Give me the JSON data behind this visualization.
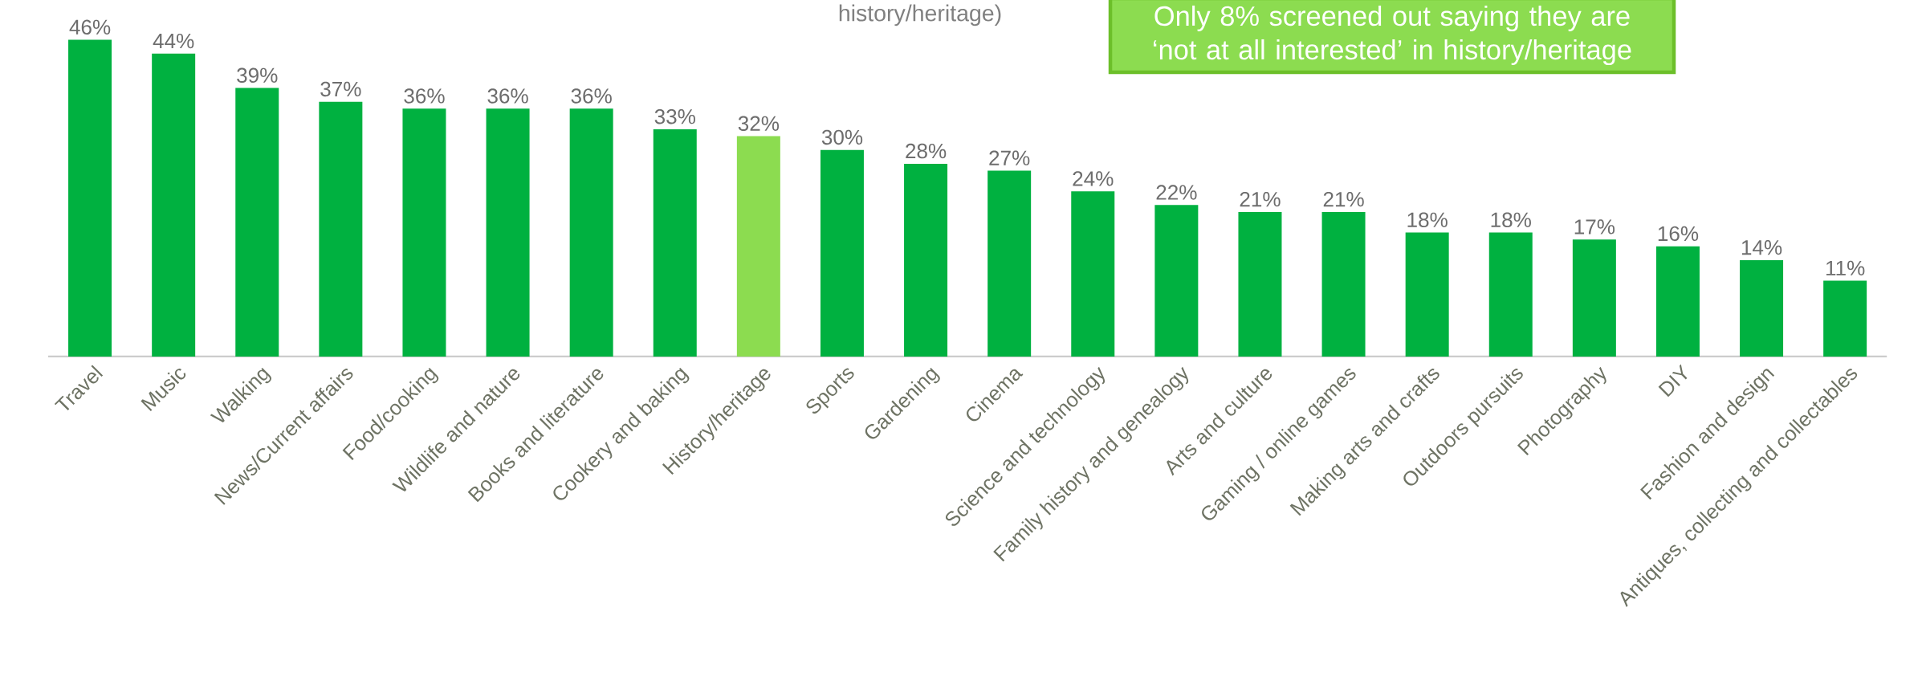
{
  "chart_data": {
    "type": "bar",
    "subtitle": "history/heritage)",
    "categories": [
      "Travel",
      "Music",
      "Walking",
      "News/Current affairs",
      "Food/cooking",
      "Wildlife and nature",
      "Books and literature",
      "Cookery and baking",
      "History/heritage",
      "Sports",
      "Gardening",
      "Cinema",
      "Science and technology",
      "Family history and genealogy",
      "Arts and culture",
      "Gaming / online games",
      "Making arts and crafts",
      "Outdoors pursuits",
      "Photography",
      "DIY",
      "Fashion and design",
      "Antiques, collecting and collectables"
    ],
    "values": [
      46,
      44,
      39,
      37,
      36,
      36,
      36,
      33,
      32,
      30,
      28,
      27,
      24,
      22,
      21,
      21,
      18,
      18,
      17,
      16,
      14,
      11
    ],
    "value_labels": [
      "46%",
      "44%",
      "39%",
      "37%",
      "36%",
      "36%",
      "36%",
      "33%",
      "32%",
      "30%",
      "28%",
      "27%",
      "24%",
      "22%",
      "21%",
      "21%",
      "18%",
      "18%",
      "17%",
      "16%",
      "14%",
      "11%"
    ],
    "colors": [
      "#00b140",
      "#00b140",
      "#00b140",
      "#00b140",
      "#00b140",
      "#00b140",
      "#00b140",
      "#00b140",
      "#8cdc50",
      "#00b140",
      "#00b140",
      "#00b140",
      "#00b140",
      "#00b140",
      "#00b140",
      "#00b140",
      "#00b140",
      "#00b140",
      "#00b140",
      "#00b140",
      "#00b140",
      "#00b140"
    ],
    "annotations": [
      "Only 8% screened out saying they are ‘not at all interested’ in history/heritage"
    ]
  }
}
